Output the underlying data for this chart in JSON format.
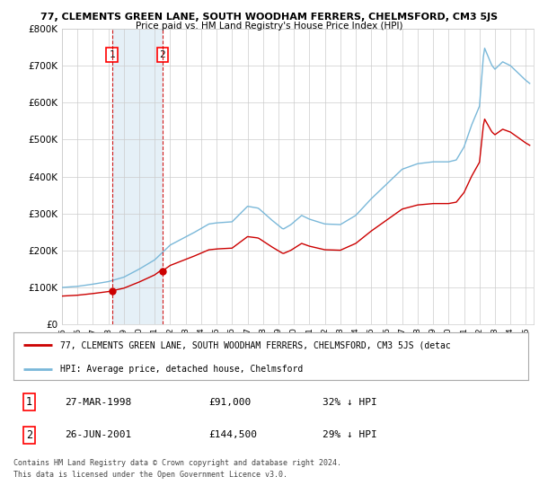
{
  "title": "77, CLEMENTS GREEN LANE, SOUTH WOODHAM FERRERS, CHELMSFORD, CM3 5JS",
  "subtitle": "Price paid vs. HM Land Registry's House Price Index (HPI)",
  "legend_line1": "77, CLEMENTS GREEN LANE, SOUTH WOODHAM FERRERS, CHELMSFORD, CM3 5JS (detac",
  "legend_line2": "HPI: Average price, detached house, Chelmsford",
  "footnote1": "Contains HM Land Registry data © Crown copyright and database right 2024.",
  "footnote2": "This data is licensed under the Open Government Licence v3.0.",
  "transaction1_date": "27-MAR-1998",
  "transaction1_price": "£91,000",
  "transaction1_hpi": "32% ↓ HPI",
  "transaction2_date": "26-JUN-2001",
  "transaction2_price": "£144,500",
  "transaction2_hpi": "29% ↓ HPI",
  "hpi_color": "#7ab8d9",
  "price_color": "#cc0000",
  "marker_color": "#cc0000",
  "vline_color": "#cc0000",
  "shade_color": "#daeaf5",
  "background_color": "#ffffff",
  "grid_color": "#cccccc",
  "ylim": [
    0,
    800000
  ],
  "xlim_start": 1995.0,
  "xlim_end": 2025.5,
  "transaction1_x": 1998.23,
  "transaction1_y": 91000,
  "transaction2_x": 2001.49,
  "transaction2_y": 144500
}
